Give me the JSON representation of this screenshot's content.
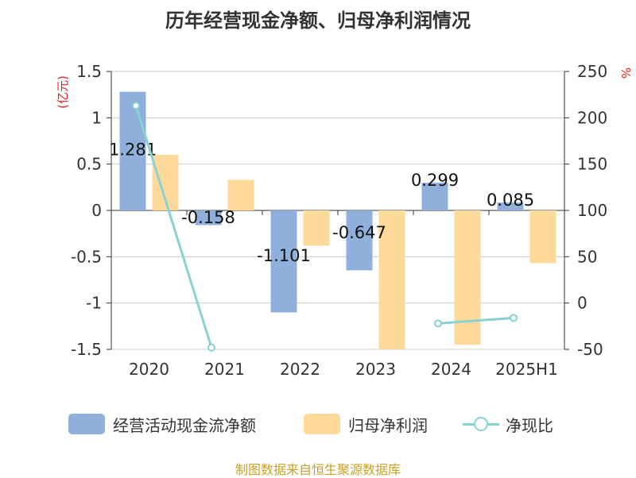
{
  "title": "历年经营现金净额、归母净利润情况",
  "source": "制图数据来自恒生聚源数据库",
  "colors": {
    "cash": "#8fb0db",
    "profit": "#fdd99a",
    "ratio": "#89d1d3",
    "axis": "#333333",
    "grid": "#cccccc",
    "unit": "#e02020"
  },
  "chart_data": {
    "type": "bar",
    "title": "历年经营现金净额、归母净利润情况",
    "categories": [
      "2020",
      "2021",
      "2022",
      "2023",
      "2024",
      "2025H1"
    ],
    "y_left": {
      "unit_label": "(亿元)",
      "ylim": [
        -1.5,
        1.5
      ],
      "ticks": [
        "1.5",
        "1",
        "0.5",
        "0",
        "-0.5",
        "-1",
        "-1.5"
      ],
      "tick_values": [
        1.5,
        1,
        0.5,
        0,
        -0.5,
        -1,
        -1.5
      ]
    },
    "y_right": {
      "unit_label": "%",
      "ylim": [
        -50,
        250
      ],
      "ticks": [
        "250",
        "200",
        "150",
        "100",
        "50",
        "0",
        "-50"
      ],
      "tick_values": [
        250,
        200,
        150,
        100,
        50,
        0,
        -50
      ]
    },
    "grid": true,
    "legend_position": "bottom",
    "series": [
      {
        "name": "经营活动现金流净额",
        "kind": "bar",
        "axis": "left",
        "values": [
          1.281,
          -0.158,
          -1.101,
          -0.647,
          0.299,
          0.085
        ],
        "labels": [
          "1.281",
          "-0.158",
          "-1.101",
          "-0.647",
          "0.299",
          "0.085"
        ]
      },
      {
        "name": "归母净利润",
        "kind": "bar",
        "axis": "left",
        "values": [
          0.6,
          0.33,
          -0.38,
          -1.5,
          -1.45,
          -0.57
        ]
      },
      {
        "name": "净现比",
        "kind": "line",
        "axis": "right",
        "values": [
          213,
          -48,
          null,
          null,
          -22,
          -16
        ]
      }
    ]
  }
}
